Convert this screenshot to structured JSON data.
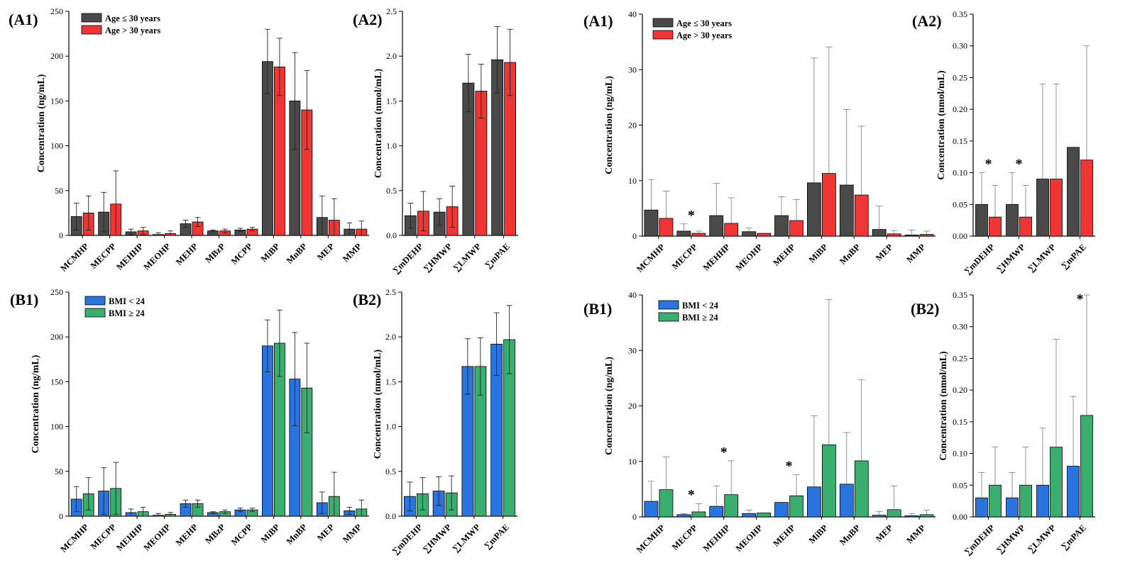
{
  "colors": {
    "age_le30": "#4a4a4a",
    "age_gt30": "#f03535",
    "bmi_lt24": "#2a74e0",
    "bmi_ge24": "#3aae6e"
  },
  "chart_data": [
    {
      "id": "left-A1",
      "label": "(A1)",
      "type": "bar",
      "ylabel": "Concentration (ng/mL)",
      "ylim": [
        0,
        250
      ],
      "yticks": [
        0,
        50,
        100,
        150,
        200,
        250
      ],
      "tick_decimals": 0,
      "categories": [
        "MCMHP",
        "MECPP",
        "MEHHP",
        "MEOHP",
        "MEHP",
        "MBzP",
        "MCPP",
        "MiBP",
        "MnBP",
        "MEP",
        "MMP"
      ],
      "legend": [
        "Age ≤ 30 years",
        "Age > 30 years"
      ],
      "series": [
        {
          "name": "Age ≤ 30 years",
          "color_key": "age_le30",
          "values": [
            21,
            26,
            4,
            1,
            13,
            5,
            6,
            194,
            150,
            20,
            7
          ],
          "errors": [
            15,
            22,
            3,
            2,
            4,
            1,
            2,
            36,
            54,
            24,
            7
          ]
        },
        {
          "name": "Age > 30 years",
          "color_key": "age_gt30",
          "values": [
            25,
            35,
            5,
            2,
            15,
            5,
            7,
            188,
            140,
            17,
            7
          ],
          "errors": [
            19,
            37,
            4,
            3,
            5,
            2,
            2,
            32,
            44,
            24,
            9
          ]
        }
      ],
      "stars": []
    },
    {
      "id": "left-A2",
      "label": "(A2)",
      "type": "bar",
      "ylabel": "Concentration (nmol/mL)",
      "ylim": [
        0,
        2.5
      ],
      "yticks": [
        0,
        0.5,
        1.0,
        1.5,
        2.0,
        2.5
      ],
      "tick_decimals": 1,
      "categories": [
        "∑mDEHP",
        "∑HMWP",
        "∑LMWP",
        "∑mPAE"
      ],
      "legend": [],
      "series": [
        {
          "name": "Age ≤ 30 years",
          "color_key": "age_le30",
          "values": [
            0.22,
            0.26,
            1.7,
            1.96
          ],
          "errors": [
            0.14,
            0.15,
            0.32,
            0.37
          ]
        },
        {
          "name": "Age > 30 years",
          "color_key": "age_gt30",
          "values": [
            0.27,
            0.32,
            1.61,
            1.93
          ],
          "errors": [
            0.22,
            0.23,
            0.3,
            0.37
          ]
        }
      ],
      "stars": []
    },
    {
      "id": "left-B1",
      "label": "(B1)",
      "type": "bar",
      "ylabel": "Concentration (ng/mL)",
      "ylim": [
        0,
        250
      ],
      "yticks": [
        0,
        50,
        100,
        150,
        200,
        250
      ],
      "tick_decimals": 0,
      "categories": [
        "MCMHP",
        "MECPP",
        "MEHHP",
        "MEOHP",
        "MEHP",
        "MBzP",
        "MCPP",
        "MiBP",
        "MnBP",
        "MEP",
        "MMP"
      ],
      "legend": [
        "BMI < 24",
        "BMI ≥ 24"
      ],
      "series": [
        {
          "name": "BMI < 24",
          "color_key": "bmi_lt24",
          "values": [
            19,
            28,
            4,
            1,
            14,
            4,
            7,
            190,
            153,
            15,
            6
          ],
          "errors": [
            14,
            26,
            4,
            2,
            4,
            1,
            2,
            29,
            52,
            12,
            4
          ]
        },
        {
          "name": "BMI ≥ 24",
          "color_key": "bmi_ge24",
          "values": [
            25,
            31,
            5,
            2,
            14,
            5,
            7,
            193,
            143,
            22,
            8
          ],
          "errors": [
            18,
            29,
            5,
            2,
            4,
            2,
            2,
            37,
            50,
            27,
            10
          ]
        }
      ],
      "stars": []
    },
    {
      "id": "left-B2",
      "label": "(B2)",
      "type": "bar",
      "ylabel": "Concentration (nmol/mL)",
      "ylim": [
        0,
        2.5
      ],
      "yticks": [
        0,
        0.5,
        1.0,
        1.5,
        2.0,
        2.5
      ],
      "tick_decimals": 1,
      "categories": [
        "∑mDEHP",
        "∑HMWP",
        "∑LMWP",
        "∑mPAE"
      ],
      "legend": [],
      "series": [
        {
          "name": "BMI < 24",
          "color_key": "bmi_lt24",
          "values": [
            0.22,
            0.28,
            1.67,
            1.92
          ],
          "errors": [
            0.16,
            0.16,
            0.31,
            0.35
          ]
        },
        {
          "name": "BMI ≥ 24",
          "color_key": "bmi_ge24",
          "values": [
            0.25,
            0.26,
            1.67,
            1.97
          ],
          "errors": [
            0.18,
            0.19,
            0.32,
            0.38
          ]
        }
      ],
      "stars": []
    },
    {
      "id": "right-A1",
      "label": "(A1)",
      "type": "bar",
      "ylabel": "Concentration (ng/mL)",
      "ylim": [
        0,
        40
      ],
      "yticks": [
        0,
        10,
        20,
        30,
        40
      ],
      "tick_decimals": 0,
      "categories": [
        "MCMHP",
        "MECPP",
        "MEHHP",
        "MEOHP",
        "MEHP",
        "MiBP",
        "MnBP",
        "MEP",
        "MMP"
      ],
      "legend": [
        "Age ≤ 30 years",
        "Age > 30 years"
      ],
      "series": [
        {
          "name": "Age ≤ 30 years",
          "color_key": "age_le30",
          "values": [
            4.7,
            0.9,
            3.7,
            0.8,
            3.7,
            9.6,
            9.2,
            1.2,
            0.2
          ],
          "errors": [
            5.5,
            1.3,
            5.8,
            0.7,
            3.4,
            22.5,
            13.6,
            4.2,
            0.9
          ]
        },
        {
          "name": "Age > 30 years",
          "color_key": "age_gt30",
          "values": [
            3.2,
            0.5,
            2.3,
            0.5,
            2.8,
            11.3,
            7.4,
            0.4,
            0.3
          ],
          "errors": [
            4.9,
            0.4,
            4.6,
            0.0,
            3.8,
            22.8,
            12.4,
            0.6,
            0.6
          ]
        }
      ],
      "stars": [
        {
          "category_index": 1,
          "text": "*"
        }
      ]
    },
    {
      "id": "right-A2",
      "label": "(A2)",
      "type": "bar",
      "ylabel": "Concentration (nmol/mL)",
      "ylim": [
        0,
        0.35
      ],
      "yticks": [
        0,
        0.05,
        0.1,
        0.15,
        0.2,
        0.25,
        0.3,
        0.35
      ],
      "tick_decimals": 2,
      "categories": [
        "∑mDEHP",
        "∑HMWP",
        "∑LMWP",
        "∑mPAE"
      ],
      "legend": [],
      "series": [
        {
          "name": "Age ≤ 30 years",
          "color_key": "age_le30",
          "values": [
            0.05,
            0.05,
            0.09,
            0.14
          ],
          "errors": [
            0.05,
            0.05,
            0.15,
            0.0
          ]
        },
        {
          "name": "Age > 30 years",
          "color_key": "age_gt30",
          "values": [
            0.03,
            0.03,
            0.09,
            0.12
          ],
          "errors": [
            0.05,
            0.05,
            0.15,
            0.18
          ]
        }
      ],
      "stars": [
        {
          "category_index": 0,
          "text": "*"
        },
        {
          "category_index": 1,
          "text": "*"
        }
      ]
    },
    {
      "id": "right-B1",
      "label": "(B1)",
      "type": "bar",
      "ylabel": "Concentration (ng/mL)",
      "ylim": [
        0,
        40
      ],
      "yticks": [
        0,
        10,
        20,
        30,
        40
      ],
      "tick_decimals": 0,
      "categories": [
        "MCMHP",
        "MECPP",
        "MEHHP",
        "MEOHP",
        "MEHP",
        "MiBP",
        "MnBP",
        "MEP",
        "MMP"
      ],
      "legend": [
        "BMI < 24",
        "BMI ≥ 24"
      ],
      "series": [
        {
          "name": "BMI < 24",
          "color_key": "bmi_lt24",
          "values": [
            2.8,
            0.4,
            1.9,
            0.6,
            2.6,
            5.4,
            5.9,
            0.3,
            0.2
          ],
          "errors": [
            3.6,
            0.2,
            3.7,
            0.6,
            0.0,
            12.8,
            9.3,
            0.7,
            0.4
          ]
        },
        {
          "name": "BMI ≥ 24",
          "color_key": "bmi_ge24",
          "values": [
            4.9,
            0.9,
            4.0,
            0.7,
            3.8,
            13.0,
            10.1,
            1.3,
            0.4
          ],
          "errors": [
            5.9,
            1.5,
            6.1,
            0.0,
            3.8,
            26.2,
            14.6,
            4.3,
            0.8
          ]
        }
      ],
      "stars": [
        {
          "category_index": 1,
          "text": "*"
        },
        {
          "category_index": 2,
          "text": "*"
        },
        {
          "category_index": 4,
          "text": "*"
        }
      ]
    },
    {
      "id": "right-B2",
      "label": "(B2)",
      "type": "bar",
      "ylabel": "Concentration (nmol/mL)",
      "ylim": [
        0,
        0.35
      ],
      "yticks": [
        0,
        0.05,
        0.1,
        0.15,
        0.2,
        0.25,
        0.3,
        0.35
      ],
      "tick_decimals": 2,
      "categories": [
        "∑mDEHP",
        "∑HMWP",
        "∑LMWP",
        "∑mPAE"
      ],
      "legend": [],
      "series": [
        {
          "name": "BMI < 24",
          "color_key": "bmi_lt24",
          "values": [
            0.03,
            0.03,
            0.05,
            0.08
          ],
          "errors": [
            0.04,
            0.04,
            0.09,
            0.11
          ]
        },
        {
          "name": "BMI ≥ 24",
          "color_key": "bmi_ge24",
          "values": [
            0.05,
            0.05,
            0.11,
            0.16
          ],
          "errors": [
            0.06,
            0.06,
            0.17,
            0.19
          ]
        }
      ],
      "stars": [
        {
          "category_index": 3,
          "text": "*"
        }
      ]
    }
  ]
}
